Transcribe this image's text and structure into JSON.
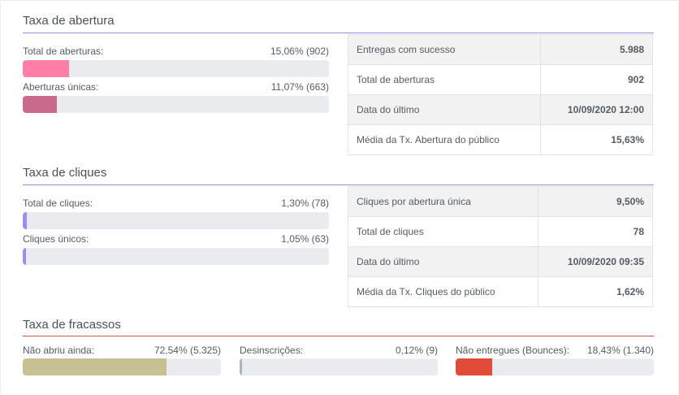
{
  "colors": {
    "accent_rule": "#9a8fd3",
    "fail_rule": "#c95a4a",
    "openings_total": "#ff7fa8",
    "openings_unique": "#c96a8c",
    "clicks": "#9a8ef0",
    "not_opened": "#c6c092",
    "unsubscribed": "#a8b4c8",
    "bounces": "#e04b3a"
  },
  "opening": {
    "title": "Taxa de abertura",
    "metrics": [
      {
        "label": "Total de aberturas:",
        "value": "15,06% (902)",
        "percent": 15.06
      },
      {
        "label": "Aberturas únicas:",
        "value": "11,07% (663)",
        "percent": 11.07
      }
    ],
    "stats": [
      {
        "label": "Entregas com sucesso",
        "value": "5.988"
      },
      {
        "label": "Total de aberturas",
        "value": "902"
      },
      {
        "label": "Data do último",
        "value": "10/09/2020 12:00"
      },
      {
        "label": "Média da Tx. Abertura do público",
        "value": "15,63%"
      }
    ]
  },
  "clicks": {
    "title": "Taxa de cliques",
    "metrics": [
      {
        "label": "Total de cliques:",
        "value": "1,30% (78)",
        "percent": 1.3
      },
      {
        "label": "Cliques únicos:",
        "value": "1,05% (63)",
        "percent": 1.05
      }
    ],
    "stats": [
      {
        "label": "Cliques por abertura única",
        "value": "9,50%"
      },
      {
        "label": "Total de cliques",
        "value": "78"
      },
      {
        "label": "Data do último",
        "value": "10/09/2020 09:35"
      },
      {
        "label": "Média da Tx. Cliques do público",
        "value": "1,62%"
      }
    ]
  },
  "failures": {
    "title": "Taxa de fracassos",
    "metrics": [
      {
        "label": "Não abriu ainda:",
        "value": "72,54% (5.325)",
        "percent": 72.54
      },
      {
        "label": "Desinscrições:",
        "value": "0,12% (9)",
        "percent": 0.12
      },
      {
        "label": "Não entregues (Bounces):",
        "value": "18,43% (1.340)",
        "percent": 18.43
      }
    ]
  }
}
